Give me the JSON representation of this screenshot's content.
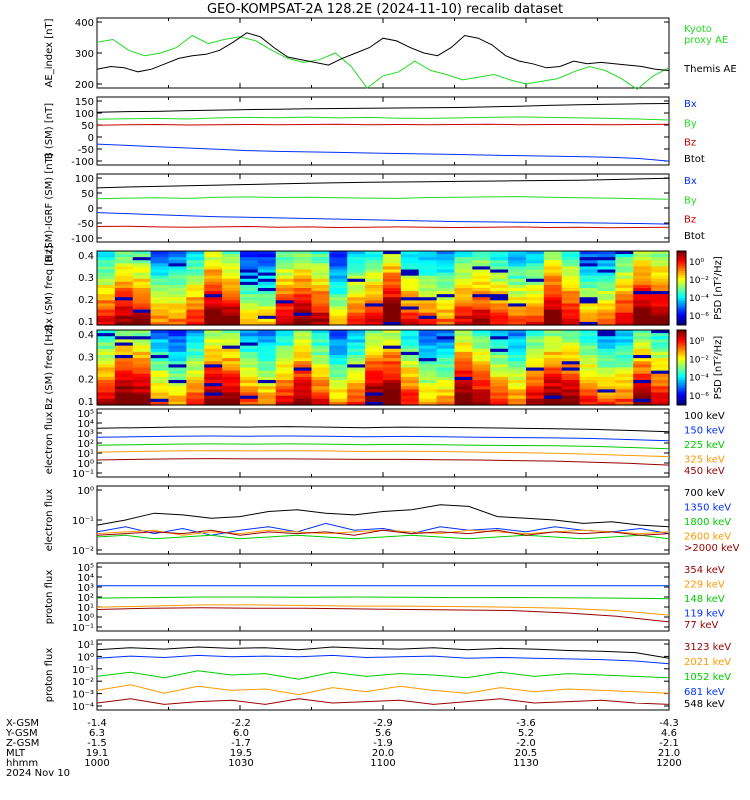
{
  "title": "GEO-KOMPSAT-2A 128.2E (2024-11-10) recalib dataset",
  "colors": {
    "black": "#000000",
    "green": "#22dd22",
    "blue": "#0030ff",
    "red": "#cc0000",
    "darkred": "#990000",
    "orange": "#ff9900",
    "green2": "#00cc00"
  },
  "time_axis": {
    "range": [
      "10:00",
      "12:00"
    ],
    "ticks": [
      "1000",
      "1030",
      "1100",
      "1130",
      "1200"
    ]
  },
  "chart_data": [
    {
      "id": "ae",
      "type": "line",
      "ylabel": "AE_index [nT]",
      "ylim": [
        150,
        410
      ],
      "yticks": [
        "400",
        "300",
        "200"
      ],
      "legend": [
        "Kyoto",
        "proxy AE",
        "Themis AE"
      ],
      "series": [
        {
          "name": "Kyoto proxy AE",
          "color": "green",
          "values": [
            320,
            330,
            290,
            270,
            280,
            300,
            345,
            315,
            330,
            340,
            325,
            290,
            260,
            245,
            255,
            280,
            230,
            150,
            195,
            210,
            250,
            215,
            200,
            180,
            190,
            200,
            180,
            165,
            175,
            185,
            210,
            230,
            215,
            185,
            145,
            195,
            225
          ]
        },
        {
          "name": "Themis AE",
          "color": "black",
          "values": [
            220,
            230,
            225,
            210,
            220,
            240,
            260,
            270,
            275,
            290,
            320,
            355,
            340,
            300,
            265,
            255,
            245,
            235,
            260,
            280,
            300,
            335,
            325,
            300,
            280,
            270,
            300,
            345,
            335,
            310,
            270,
            250,
            240,
            225,
            230,
            250,
            240,
            245,
            240,
            235,
            230,
            220,
            215
          ]
        }
      ]
    },
    {
      "id": "b_sm",
      "type": "line",
      "ylabel": "B (SM) [nT]",
      "ylim": [
        -110,
        150
      ],
      "yticks": [
        "150",
        "100",
        "50",
        "0",
        "-50",
        "-100"
      ],
      "legend": [
        "Bx",
        "By",
        "Bz",
        "Btot"
      ],
      "series": [
        {
          "name": "Btot",
          "color": "black",
          "values": [
            92,
            94,
            95,
            98,
            100,
            102,
            103,
            105,
            106,
            107,
            108,
            109,
            110,
            112,
            115,
            118,
            120,
            122,
            124,
            125
          ]
        },
        {
          "name": "By",
          "color": "green",
          "values": [
            65,
            67,
            68,
            66,
            70,
            72,
            71,
            73,
            70,
            72,
            69,
            68,
            70,
            72,
            74,
            72,
            70,
            68,
            66,
            62
          ]
        },
        {
          "name": "Bz",
          "color": "red",
          "values": [
            42,
            44,
            45,
            43,
            44,
            45,
            44,
            45,
            46,
            44,
            45,
            44,
            45,
            46,
            44,
            45,
            45,
            44,
            45,
            46
          ]
        },
        {
          "name": "Bx",
          "color": "blue",
          "values": [
            -30,
            -35,
            -40,
            -45,
            -50,
            -55,
            -58,
            -60,
            -62,
            -64,
            -66,
            -68,
            -70,
            -72,
            -74,
            -76,
            -78,
            -80,
            -85,
            -95
          ]
        }
      ]
    },
    {
      "id": "b_igrf",
      "type": "line",
      "ylabel": "B (SM)-IGRF (SM) [nT]",
      "ylim": [
        -110,
        110
      ],
      "yticks": [
        "100",
        "50",
        "0",
        "-50",
        "-100"
      ],
      "legend": [
        "Bx",
        "By",
        "Bz",
        "Btot"
      ],
      "series": [
        {
          "name": "Btot",
          "color": "black",
          "values": [
            65,
            68,
            70,
            72,
            74,
            76,
            78,
            80,
            82,
            83,
            84,
            85,
            86,
            87,
            88,
            89,
            90,
            92,
            94,
            96
          ]
        },
        {
          "name": "By",
          "color": "green",
          "values": [
            30,
            32,
            33,
            31,
            35,
            36,
            34,
            35,
            33,
            32,
            31,
            34,
            35,
            36,
            37,
            35,
            33,
            32,
            30,
            28
          ]
        },
        {
          "name": "Bx",
          "color": "blue",
          "values": [
            -15,
            -18,
            -22,
            -25,
            -28,
            -30,
            -32,
            -34,
            -36,
            -38,
            -40,
            -42,
            -44,
            -45,
            -46,
            -47,
            -48,
            -49,
            -50,
            -52
          ]
        },
        {
          "name": "Bz",
          "color": "red",
          "values": [
            -60,
            -59,
            -61,
            -62,
            -61,
            -60,
            -62,
            -61,
            -63,
            -62,
            -61,
            -62,
            -63,
            -62,
            -61,
            -63,
            -62,
            -64,
            -63,
            -62
          ]
        }
      ]
    },
    {
      "id": "spec_bx",
      "type": "heatmap",
      "ylabel": "Bx (SM) freq [Hz]",
      "yticks": [
        "0.4",
        "0.3",
        "0.2",
        "0.1"
      ],
      "colorbar": {
        "label": "PSD [nT²/Hz]",
        "ticks": [
          "10⁰",
          "10⁻²",
          "10⁻⁴",
          "10⁻⁶"
        ]
      }
    },
    {
      "id": "spec_bz",
      "type": "heatmap",
      "ylabel": "Bz (SM) freq [Hz]",
      "yticks": [
        "0.4",
        "0.3",
        "0.2",
        "0.1"
      ],
      "colorbar": {
        "label": "PSD [nT²/Hz]",
        "ticks": [
          "10⁰",
          "10⁻²",
          "10⁻⁴",
          "10⁻⁶"
        ]
      }
    },
    {
      "id": "e_low",
      "type": "line",
      "ylabel": "electron flux",
      "log": true,
      "ylim": [
        -1,
        5
      ],
      "yticks": [
        "10⁵",
        "10⁴",
        "10³",
        "10²",
        "10¹",
        "10⁰",
        "10⁻¹"
      ],
      "legend": [
        "100 keV",
        "150 keV",
        "225 keV",
        "325 keV",
        "450 keV"
      ],
      "series": [
        {
          "name": "100 keV",
          "color": "black",
          "values": [
            3.3,
            3.35,
            3.4,
            3.42,
            3.4,
            3.45,
            3.4,
            3.35,
            3.4,
            3.38,
            3.35,
            3.3,
            3.25,
            3.2,
            3.1,
            3.0
          ]
        },
        {
          "name": "150 keV",
          "color": "blue",
          "values": [
            2.5,
            2.55,
            2.6,
            2.62,
            2.6,
            2.62,
            2.6,
            2.55,
            2.58,
            2.55,
            2.5,
            2.48,
            2.45,
            2.4,
            2.3,
            2.2
          ]
        },
        {
          "name": "225 keV",
          "color": "green2",
          "values": [
            1.8,
            1.85,
            1.9,
            1.92,
            1.9,
            1.92,
            1.9,
            1.85,
            1.88,
            1.85,
            1.8,
            1.78,
            1.75,
            1.7,
            1.6,
            1.5
          ]
        },
        {
          "name": "325 keV",
          "color": "orange",
          "values": [
            1.2,
            1.25,
            1.3,
            1.32,
            1.3,
            1.32,
            1.3,
            1.25,
            1.28,
            1.25,
            1.2,
            1.15,
            1.1,
            1.0,
            0.9,
            0.8
          ]
        },
        {
          "name": "450 keV",
          "color": "darkred",
          "values": [
            0.5,
            0.55,
            0.6,
            0.62,
            0.6,
            0.6,
            0.58,
            0.55,
            0.55,
            0.52,
            0.5,
            0.45,
            0.4,
            0.3,
            0.2,
            0.05
          ]
        }
      ]
    },
    {
      "id": "e_high",
      "type": "line",
      "ylabel": "electron flux",
      "log": true,
      "ylim": [
        -2,
        0
      ],
      "yticks": [
        "10⁰",
        "10⁻¹",
        "10⁻²"
      ],
      "legend": [
        "700 keV",
        "1350 keV",
        "1800 keV",
        "2600 keV",
        ">2000 keV"
      ],
      "series": [
        {
          "name": "700 keV",
          "color": "black",
          "values": [
            -1.15,
            -1.0,
            -0.8,
            -0.85,
            -0.95,
            -0.9,
            -0.75,
            -0.7,
            -0.8,
            -0.85,
            -0.75,
            -0.7,
            -0.55,
            -0.6,
            -0.9,
            -0.95,
            -1.0,
            -1.1,
            -1.05,
            -1.15,
            -1.2
          ]
        },
        {
          "name": "1350 keV",
          "color": "blue",
          "values": [
            -1.35,
            -1.2,
            -1.4,
            -1.25,
            -1.45,
            -1.3,
            -1.2,
            -1.35,
            -1.1,
            -1.3,
            -1.25,
            -1.4,
            -1.2,
            -1.3,
            -1.25,
            -1.35,
            -1.2,
            -1.3,
            -1.35,
            -1.25,
            -1.4
          ]
        },
        {
          "name": "1800 keV",
          "color": "green2",
          "values": [
            -1.5,
            -1.45,
            -1.55,
            -1.5,
            -1.45,
            -1.55,
            -1.5,
            -1.45,
            -1.5,
            -1.55,
            -1.5,
            -1.45,
            -1.5,
            -1.55,
            -1.5,
            -1.45,
            -1.5,
            -1.55,
            -1.5,
            -1.45,
            -1.55
          ]
        },
        {
          "name": "2600 keV",
          "color": "orange",
          "values": [
            -1.4,
            -1.35,
            -1.3,
            -1.45,
            -1.35,
            -1.4,
            -1.3,
            -1.35,
            -1.4,
            -1.35,
            -1.3,
            -1.35,
            -1.4,
            -1.3,
            -1.35,
            -1.4,
            -1.35,
            -1.3,
            -1.35,
            -1.4,
            -1.35
          ]
        },
        {
          "name": ">2000 keV",
          "color": "darkred",
          "values": [
            -1.45,
            -1.4,
            -1.35,
            -1.4,
            -1.3,
            -1.45,
            -1.35,
            -1.4,
            -1.35,
            -1.45,
            -1.3,
            -1.4,
            -1.35,
            -1.4,
            -1.3,
            -1.45,
            -1.35,
            -1.4,
            -1.35,
            -1.45,
            -1.4
          ]
        }
      ]
    },
    {
      "id": "p_low",
      "type": "line",
      "ylabel": "proton flux",
      "log": true,
      "ylim": [
        -1,
        5
      ],
      "yticks": [
        "10⁵",
        "10⁴",
        "10³",
        "10²",
        "10¹",
        "10⁰",
        "10⁻¹"
      ],
      "legend": [
        "354 keV",
        "229 keV",
        "148 keV",
        "119 keV",
        "77 keV"
      ],
      "series": [
        {
          "name": "119 keV",
          "color": "blue",
          "values": [
            3.0,
            3.0,
            3.0,
            3.0,
            3.0,
            3.0,
            3.0,
            3.0,
            3.0,
            3.0,
            3.0,
            3.0
          ]
        },
        {
          "name": "148 keV",
          "color": "green2",
          "values": [
            1.9,
            1.95,
            2.0,
            2.0,
            1.98,
            2.0,
            1.97,
            1.95,
            1.96,
            1.94,
            1.9,
            1.85
          ]
        },
        {
          "name": "229 keV",
          "color": "orange",
          "values": [
            1.1,
            1.2,
            1.3,
            1.3,
            1.25,
            1.2,
            1.2,
            1.15,
            1.1,
            1.0,
            0.8,
            0.4
          ]
        },
        {
          "name": "354 keV",
          "color": "darkred",
          "values": [
            0.9,
            1.0,
            1.05,
            1.0,
            1.0,
            0.95,
            0.9,
            0.85,
            0.8,
            0.6,
            0.3,
            -0.2
          ]
        }
      ]
    },
    {
      "id": "p_high",
      "type": "line",
      "ylabel": "proton flux",
      "log": true,
      "ylim": [
        -4,
        1
      ],
      "yticks": [
        "10¹",
        "10⁰",
        "10⁻¹",
        "10⁻²",
        "10⁻³",
        "10⁻⁴"
      ],
      "legend": [
        "3123 keV",
        "2021 keV",
        "1052 keV",
        "681 keV",
        "548 keV"
      ],
      "series": [
        {
          "name": "548 keV",
          "color": "black",
          "values": [
            0.3,
            0.45,
            0.35,
            0.5,
            0.4,
            0.45,
            0.3,
            0.5,
            0.4,
            0.35,
            0.45,
            0.3,
            0.4,
            0.35,
            0.25,
            0.2,
            0.1,
            -0.3
          ]
        },
        {
          "name": "681 keV",
          "color": "blue",
          "values": [
            -0.3,
            -0.15,
            -0.25,
            -0.1,
            -0.2,
            -0.15,
            -0.2,
            -0.1,
            -0.25,
            -0.2,
            -0.15,
            -0.3,
            -0.25,
            -0.3,
            -0.35,
            -0.4,
            -0.5,
            -0.7
          ]
        },
        {
          "name": "1052 keV",
          "color": "green2",
          "values": [
            -1.6,
            -1.3,
            -1.7,
            -1.2,
            -1.5,
            -1.4,
            -1.8,
            -1.3,
            -1.6,
            -1.4,
            -1.5,
            -1.7,
            -1.3,
            -1.6,
            -1.4,
            -1.5,
            -1.6,
            -1.7
          ]
        },
        {
          "name": "2021 keV",
          "color": "orange",
          "values": [
            -2.6,
            -2.2,
            -2.8,
            -2.3,
            -2.6,
            -2.5,
            -2.9,
            -2.4,
            -2.7,
            -2.3,
            -2.6,
            -2.8,
            -2.4,
            -2.7,
            -2.5,
            -2.6,
            -2.7,
            -2.8
          ]
        },
        {
          "name": "3123 keV",
          "color": "darkred",
          "values": [
            -3.5,
            -3.2,
            -3.6,
            -3.4,
            -3.3,
            -3.6,
            -3.2,
            -3.5,
            -3.4,
            -3.3,
            -3.6,
            -3.4,
            -3.2,
            -3.5,
            -3.4,
            -3.3,
            -3.5,
            -3.6
          ]
        }
      ]
    }
  ],
  "orbit": {
    "rows": [
      {
        "label": "X-GSM",
        "values": [
          "-1.4",
          "-2.2",
          "-2.9",
          "-3.6",
          "-4.3"
        ]
      },
      {
        "label": "Y-GSM",
        "values": [
          "6.3",
          "6.0",
          "5.6",
          "5.2",
          "4.6"
        ]
      },
      {
        "label": "Z-GSM",
        "values": [
          "-1.5",
          "-1.7",
          "-1.9",
          "-2.0",
          "-2.1"
        ]
      },
      {
        "label": "MLT",
        "values": [
          "19.1",
          "19.5",
          "20.0",
          "20.5",
          "21.0"
        ]
      },
      {
        "label": "hhmm",
        "values": [
          "1000",
          "1030",
          "1100",
          "1130",
          "1200"
        ]
      }
    ],
    "date": "2024 Nov 10"
  }
}
